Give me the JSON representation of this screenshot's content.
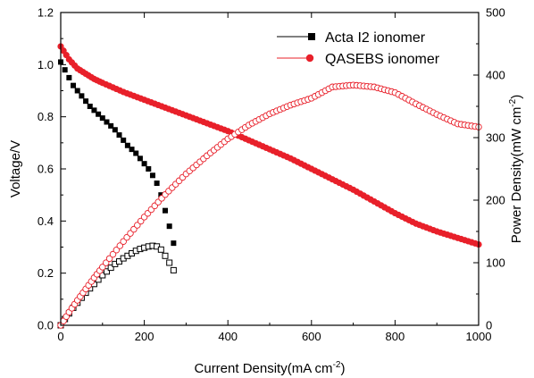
{
  "chart_data": {
    "type": "scatter",
    "xlabel": "Current Density(mA cm",
    "xlabel_sup": "-2",
    "xlabel_end": ")",
    "ylabel": "Voltage/V",
    "y2label": "Power Density(mW cm",
    "y2label_sup": "-2",
    "y2label_end": ")",
    "xlim": [
      0,
      1000
    ],
    "ylim": [
      0.0,
      1.2
    ],
    "y2lim": [
      0,
      500
    ],
    "x_ticks": [
      "0",
      "200",
      "400",
      "600",
      "800",
      "1000"
    ],
    "y_ticks": [
      "0.0",
      "0.2",
      "0.4",
      "0.6",
      "0.8",
      "1.0",
      "1.2"
    ],
    "y2_ticks": [
      "0",
      "100",
      "200",
      "300",
      "400",
      "500"
    ],
    "grid": false,
    "legend_position": "top-right",
    "legend": [
      {
        "label": "Acta I2 ionomer",
        "color": "#000000",
        "marker": "square"
      },
      {
        "label": "QASEBS ionomer",
        "color": "#e8202a",
        "marker": "circle"
      }
    ],
    "series": [
      {
        "name": "Acta I2 ionomer",
        "kind": "voltage",
        "axis": "left",
        "color": "#000000",
        "marker": "square",
        "filled": true,
        "points": [
          [
            0,
            1.01
          ],
          [
            10,
            0.98
          ],
          [
            20,
            0.95
          ],
          [
            30,
            0.92
          ],
          [
            40,
            0.9
          ],
          [
            50,
            0.88
          ],
          [
            60,
            0.86
          ],
          [
            70,
            0.84
          ],
          [
            80,
            0.825
          ],
          [
            90,
            0.81
          ],
          [
            100,
            0.795
          ],
          [
            110,
            0.78
          ],
          [
            120,
            0.765
          ],
          [
            130,
            0.75
          ],
          [
            140,
            0.73
          ],
          [
            150,
            0.71
          ],
          [
            160,
            0.69
          ],
          [
            170,
            0.675
          ],
          [
            180,
            0.66
          ],
          [
            190,
            0.64
          ],
          [
            200,
            0.62
          ],
          [
            210,
            0.6
          ],
          [
            220,
            0.575
          ],
          [
            230,
            0.545
          ],
          [
            240,
            0.5
          ],
          [
            250,
            0.44
          ],
          [
            260,
            0.38
          ],
          [
            270,
            0.315
          ]
        ]
      },
      {
        "name": "Acta I2 ionomer",
        "kind": "power",
        "axis": "right",
        "color": "#000000",
        "marker": "square",
        "filled": false,
        "points": [
          [
            0,
            0
          ],
          [
            10,
            10
          ],
          [
            20,
            19
          ],
          [
            30,
            28
          ],
          [
            40,
            36
          ],
          [
            50,
            44
          ],
          [
            60,
            52
          ],
          [
            70,
            59
          ],
          [
            80,
            66
          ],
          [
            90,
            73
          ],
          [
            100,
            80
          ],
          [
            110,
            86
          ],
          [
            120,
            92
          ],
          [
            130,
            98
          ],
          [
            140,
            102
          ],
          [
            150,
            107
          ],
          [
            160,
            111
          ],
          [
            170,
            115
          ],
          [
            180,
            119
          ],
          [
            190,
            122
          ],
          [
            200,
            124
          ],
          [
            210,
            126
          ],
          [
            220,
            127
          ],
          [
            230,
            126
          ],
          [
            240,
            121
          ],
          [
            250,
            111
          ],
          [
            260,
            100
          ],
          [
            270,
            88
          ]
        ]
      },
      {
        "name": "QASEBS ionomer",
        "kind": "voltage",
        "axis": "left",
        "color": "#e8202a",
        "marker": "circle",
        "filled": true,
        "points": [
          [
            0,
            1.07
          ],
          [
            20,
            1.02
          ],
          [
            40,
            0.985
          ],
          [
            60,
            0.965
          ],
          [
            80,
            0.945
          ],
          [
            100,
            0.93
          ],
          [
            150,
            0.895
          ],
          [
            200,
            0.865
          ],
          [
            250,
            0.835
          ],
          [
            300,
            0.805
          ],
          [
            350,
            0.775
          ],
          [
            400,
            0.745
          ],
          [
            450,
            0.71
          ],
          [
            500,
            0.675
          ],
          [
            550,
            0.64
          ],
          [
            600,
            0.6
          ],
          [
            650,
            0.56
          ],
          [
            700,
            0.52
          ],
          [
            750,
            0.475
          ],
          [
            800,
            0.43
          ],
          [
            850,
            0.39
          ],
          [
            900,
            0.36
          ],
          [
            950,
            0.335
          ],
          [
            1000,
            0.31
          ]
        ]
      },
      {
        "name": "QASEBS ionomer",
        "kind": "power",
        "axis": "right",
        "color": "#e8202a",
        "marker": "circle",
        "filled": false,
        "points": [
          [
            0,
            0
          ],
          [
            20,
            21
          ],
          [
            40,
            40
          ],
          [
            60,
            58
          ],
          [
            80,
            76
          ],
          [
            100,
            93
          ],
          [
            150,
            134
          ],
          [
            200,
            173
          ],
          [
            250,
            209
          ],
          [
            300,
            242
          ],
          [
            350,
            271
          ],
          [
            400,
            298
          ],
          [
            450,
            320
          ],
          [
            500,
            338
          ],
          [
            550,
            352
          ],
          [
            600,
            363
          ],
          [
            650,
            381
          ],
          [
            700,
            384
          ],
          [
            750,
            381
          ],
          [
            800,
            372
          ],
          [
            850,
            354
          ],
          [
            900,
            337
          ],
          [
            950,
            322
          ],
          [
            1000,
            317
          ]
        ]
      }
    ]
  }
}
